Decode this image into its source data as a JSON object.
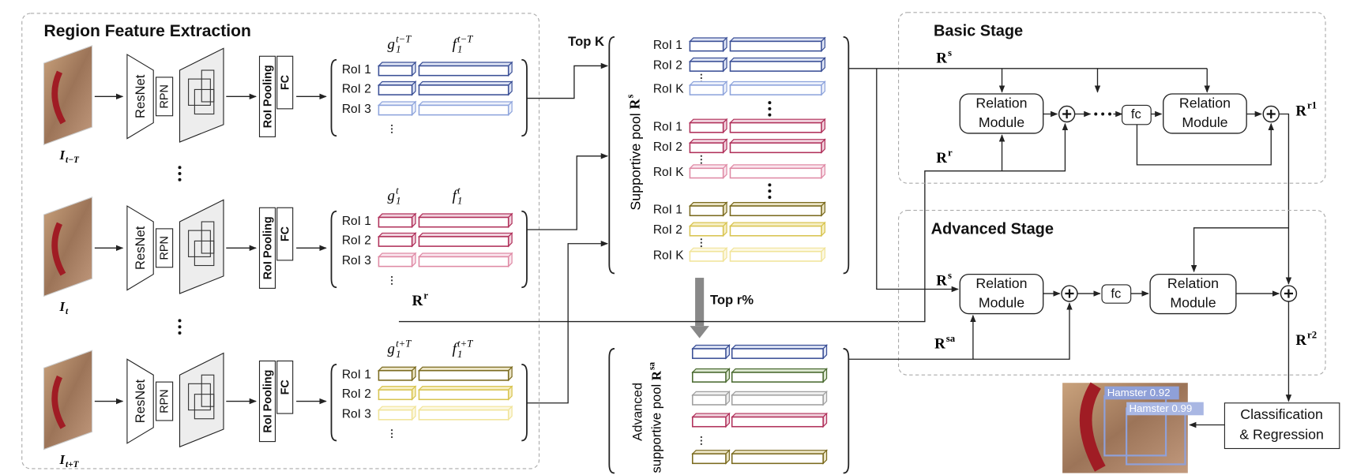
{
  "region_feature_extraction": {
    "title": "Region Feature Extraction",
    "frames": [
      {
        "image_label": {
          "base": "I",
          "sub": "t−T"
        },
        "backbone": "ResNet",
        "rpn": "RPN",
        "roi_pooling": "RoI Pooling",
        "fc": "FC",
        "g_label": {
          "base": "g",
          "sub": "1",
          "sup": "t−T"
        },
        "f_label": {
          "base": "f",
          "sub": "1",
          "sup": "t−T"
        },
        "rois": [
          "RoI 1",
          "RoI 2",
          "RoI 3"
        ]
      },
      {
        "image_label": {
          "base": "I",
          "sub": "t"
        },
        "backbone": "ResNet",
        "rpn": "RPN",
        "roi_pooling": "RoI Pooling",
        "fc": "FC",
        "g_label": {
          "base": "g",
          "sub": "1",
          "sup": "t"
        },
        "f_label": {
          "base": "f",
          "sub": "1",
          "sup": "t"
        },
        "rois": [
          "RoI 1",
          "RoI 2",
          "RoI 3"
        ]
      },
      {
        "image_label": {
          "base": "I",
          "sub": "t+T"
        },
        "backbone": "ResNet",
        "rpn": "RPN",
        "roi_pooling": "RoI Pooling",
        "fc": "FC",
        "g_label": {
          "base": "g",
          "sub": "1",
          "sup": "t+T"
        },
        "f_label": {
          "base": "f",
          "sub": "1",
          "sup": "t+T"
        },
        "rois": [
          "RoI 1",
          "RoI 2",
          "RoI 3"
        ]
      }
    ]
  },
  "rr_label": {
    "base": "R",
    "sup": "r"
  },
  "supportive_pool": {
    "top_k": "Top K",
    "title": {
      "text": "Supportive pool ",
      "base": "R",
      "sup": "s"
    },
    "groups": [
      [
        "RoI 1",
        "RoI 2",
        "RoI K"
      ],
      [
        "RoI 1",
        "RoI 2",
        "RoI K"
      ],
      [
        "RoI 1",
        "RoI 2",
        "RoI K"
      ]
    ]
  },
  "top_r": "Top r%",
  "advanced_pool": {
    "line1": "Advanced",
    "line2": {
      "text": "supportive pool ",
      "base": "R",
      "sup": "sa"
    }
  },
  "basic_stage": {
    "title": "Basic Stage",
    "rs_label": {
      "base": "R",
      "sup": "s"
    },
    "rr_label": {
      "base": "R",
      "sup": "r"
    },
    "relation_modules": [
      {
        "line1": "Relation",
        "line2": "Module"
      },
      {
        "line1": "Relation",
        "line2": "Module"
      }
    ],
    "fc": "fc",
    "output": {
      "base": "R",
      "sup": "r1"
    }
  },
  "advanced_stage": {
    "title": "Advanced Stage",
    "rs_label": {
      "base": "R",
      "sup": "s"
    },
    "rsa_label": {
      "base": "R",
      "sup": "sa"
    },
    "relation_modules": [
      {
        "line1": "Relation",
        "line2": "Module"
      },
      {
        "line1": "Relation",
        "line2": "Module"
      }
    ],
    "fc": "fc",
    "output": {
      "base": "R",
      "sup": "r2"
    }
  },
  "classification": {
    "line1": "Classification",
    "line2": "& Regression"
  },
  "detections": [
    "Hamster 0.92",
    "Hamster 0.99"
  ]
}
